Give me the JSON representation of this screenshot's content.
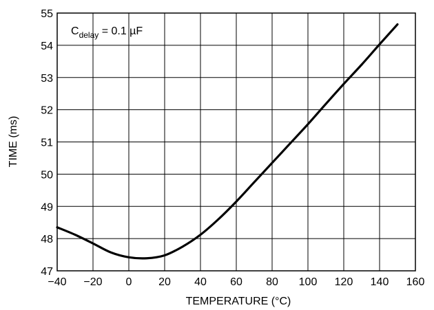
{
  "chart_data": {
    "type": "line",
    "title": "",
    "xlabel": "TEMPERATURE (°C)",
    "ylabel": "TIME (ms)",
    "xlim": [
      -40,
      160
    ],
    "ylim": [
      47,
      55
    ],
    "x_ticks": [
      -40,
      -20,
      0,
      20,
      40,
      60,
      80,
      100,
      120,
      140,
      160
    ],
    "y_ticks": [
      47,
      48,
      49,
      50,
      51,
      52,
      53,
      54,
      55
    ],
    "x_tick_labels": [
      "−40",
      "−20",
      "0",
      "20",
      "40",
      "60",
      "80",
      "100",
      "120",
      "140",
      "160"
    ],
    "y_tick_labels": [
      "47",
      "48",
      "49",
      "50",
      "51",
      "52",
      "53",
      "54",
      "55"
    ],
    "grid": true,
    "annotation": {
      "main": "C",
      "subscript": "delay",
      "rest": " = 0.1 µF"
    },
    "series": [
      {
        "x": [
          -40,
          -30,
          -20,
          -10,
          0,
          10,
          20,
          30,
          40,
          50,
          60,
          70,
          80,
          90,
          100,
          110,
          120,
          130,
          140,
          150
        ],
        "y": [
          48.35,
          48.12,
          47.85,
          47.57,
          47.42,
          47.39,
          47.48,
          47.75,
          48.12,
          48.6,
          49.15,
          49.75,
          50.35,
          50.95,
          51.55,
          52.18,
          52.8,
          53.4,
          54.03,
          54.65
        ]
      }
    ]
  }
}
